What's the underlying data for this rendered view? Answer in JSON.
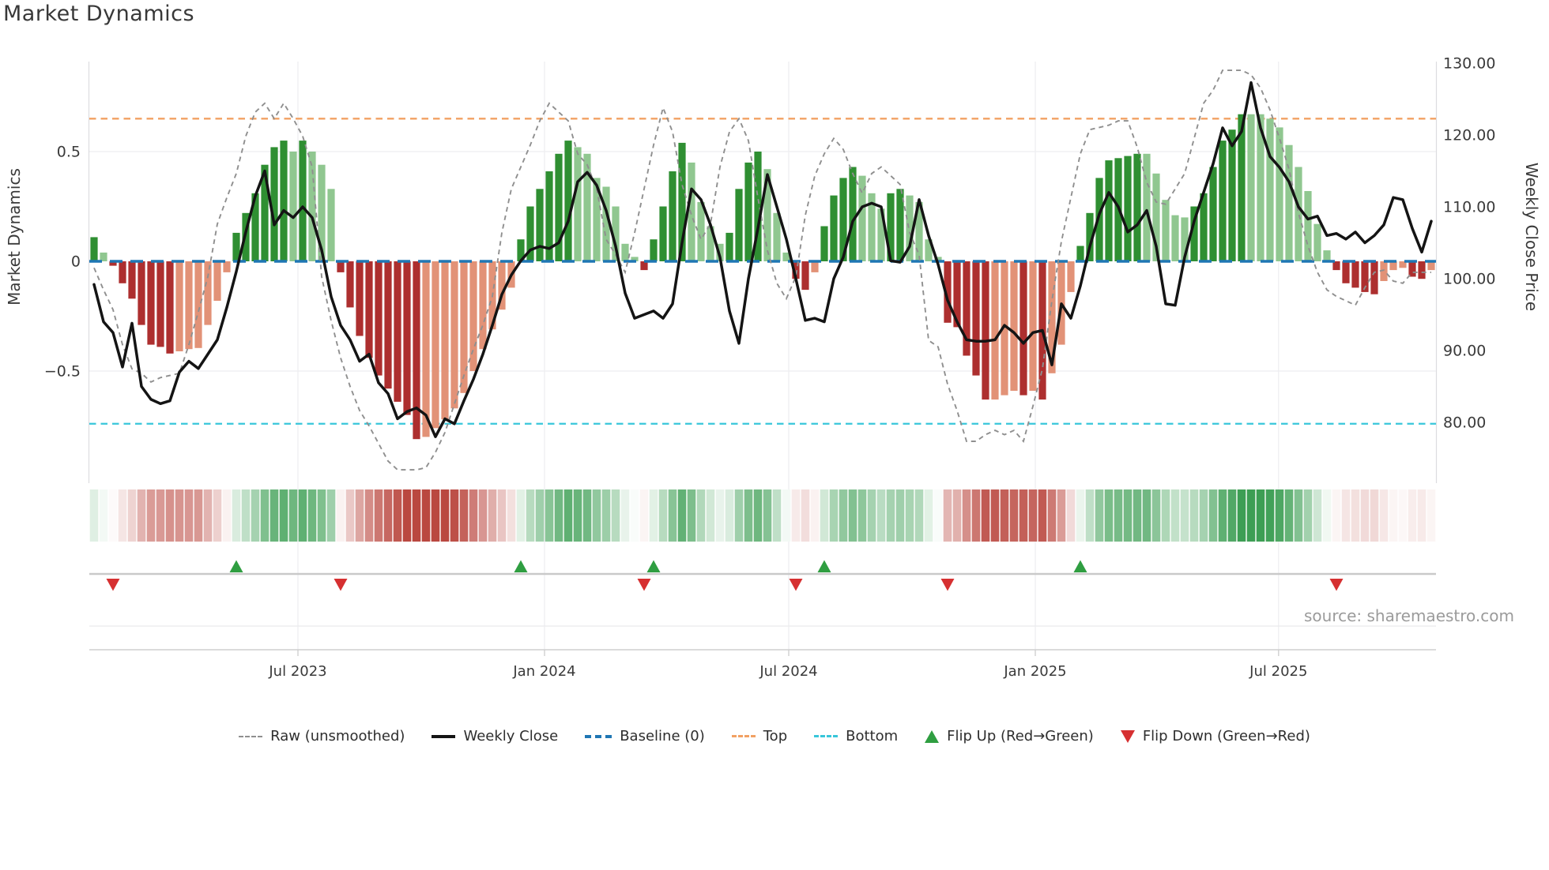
{
  "source_credit": "source: sharemaestro.com",
  "legend": {
    "items": [
      {
        "label": "Raw (unsmoothed)"
      },
      {
        "label": "Weekly Close"
      },
      {
        "label": "Baseline (0)"
      },
      {
        "label": "Top"
      },
      {
        "label": "Bottom"
      },
      {
        "label": "Flip Up (Red→Green)"
      },
      {
        "label": "Flip Down (Green→Red)"
      }
    ]
  },
  "chart_data": {
    "type": "combo",
    "title": "Market Dynamics",
    "x_axis": {
      "tick_labels": [
        "Jul 2023",
        "Jan 2024",
        "Jul 2024",
        "Jan 2025",
        "Jul 2025"
      ],
      "tick_week_positions": [
        22,
        48,
        73.75,
        99.75,
        125.4
      ],
      "n_weeks": 142
    },
    "left_axis": {
      "label": "Market Dynamics",
      "ticks": [
        {
          "value": 0.5,
          "label": "0.5"
        },
        {
          "value": 0,
          "label": "0"
        },
        {
          "value": -0.5,
          "label": "−0.5"
        }
      ],
      "range": [
        -1.0,
        0.9
      ]
    },
    "right_axis": {
      "label": "Weekly Close Price",
      "ticks": [
        {
          "value": 130,
          "label": "130.00"
        },
        {
          "value": 120,
          "label": "120.00"
        },
        {
          "value": 110,
          "label": "110.00"
        },
        {
          "value": 100,
          "label": "100.00"
        },
        {
          "value": 90,
          "label": "90.00"
        },
        {
          "value": 80,
          "label": "80.00"
        }
      ],
      "range": [
        72,
        130.5
      ]
    },
    "reference_lines": {
      "baseline": 0,
      "top": 0.65,
      "bottom": -0.74
    },
    "series": [
      {
        "name": "Market Dynamics (smoothed bars)",
        "type": "bar",
        "axis": "left",
        "values": [
          0.11,
          0.04,
          -0.02,
          -0.1,
          -0.17,
          -0.29,
          -0.38,
          -0.39,
          -0.42,
          -0.41,
          -0.4,
          -0.395,
          -0.29,
          -0.18,
          -0.05,
          0.13,
          0.22,
          0.31,
          0.44,
          0.52,
          0.55,
          0.5,
          0.55,
          0.5,
          0.44,
          0.33,
          -0.05,
          -0.21,
          -0.34,
          -0.44,
          -0.52,
          -0.58,
          -0.64,
          -0.7,
          -0.81,
          -0.8,
          -0.76,
          -0.72,
          -0.67,
          -0.6,
          -0.5,
          -0.4,
          -0.31,
          -0.22,
          -0.12,
          0.1,
          0.25,
          0.33,
          0.41,
          0.49,
          0.55,
          0.52,
          0.49,
          0.38,
          0.34,
          0.25,
          0.08,
          0.02,
          -0.04,
          0.1,
          0.25,
          0.41,
          0.54,
          0.45,
          0.27,
          0.16,
          0.08,
          0.13,
          0.33,
          0.45,
          0.5,
          0.42,
          0.22,
          0.04,
          -0.08,
          -0.13,
          -0.05,
          0.16,
          0.3,
          0.38,
          0.43,
          0.39,
          0.31,
          0.24,
          0.31,
          0.33,
          0.3,
          0.27,
          0.1,
          0.02,
          -0.28,
          -0.3,
          -0.43,
          -0.52,
          -0.63,
          -0.63,
          -0.61,
          -0.59,
          -0.61,
          -0.59,
          -0.63,
          -0.51,
          -0.38,
          -0.14,
          0.07,
          0.22,
          0.38,
          0.46,
          0.47,
          0.48,
          0.49,
          0.49,
          0.4,
          0.28,
          0.21,
          0.2,
          0.25,
          0.31,
          0.43,
          0.55,
          0.6,
          0.67,
          0.67,
          0.67,
          0.65,
          0.61,
          0.53,
          0.43,
          0.32,
          0.17,
          0.05,
          -0.04,
          -0.1,
          -0.12,
          -0.14,
          -0.15,
          -0.09,
          -0.04,
          -0.03,
          -0.07,
          -0.08,
          -0.04
        ]
      },
      {
        "name": "Raw (unsmoothed)",
        "type": "line",
        "dash": true,
        "axis": "left",
        "values": [
          -0.03,
          -0.13,
          -0.22,
          -0.38,
          -0.49,
          -0.51,
          -0.55,
          -0.53,
          -0.52,
          -0.51,
          -0.38,
          -0.23,
          -0.07,
          0.17,
          0.29,
          0.4,
          0.57,
          0.68,
          0.72,
          0.65,
          0.72,
          0.65,
          0.57,
          0.43,
          -0.07,
          -0.27,
          -0.44,
          -0.57,
          -0.68,
          -0.75,
          -0.83,
          -0.91,
          -0.95,
          -0.95,
          -0.95,
          -0.94,
          -0.87,
          -0.78,
          -0.65,
          -0.52,
          -0.4,
          -0.29,
          -0.16,
          0.13,
          0.33,
          0.43,
          0.53,
          0.64,
          0.72,
          0.68,
          0.64,
          0.49,
          0.44,
          0.33,
          0.1,
          0.03,
          -0.05,
          0.13,
          0.33,
          0.53,
          0.7,
          0.59,
          0.35,
          0.21,
          0.1,
          0.17,
          0.43,
          0.59,
          0.65,
          0.55,
          0.29,
          0.05,
          -0.1,
          -0.17,
          -0.07,
          0.21,
          0.39,
          0.49,
          0.56,
          0.51,
          0.4,
          0.31,
          0.4,
          0.43,
          0.39,
          0.35,
          0.13,
          0.03,
          -0.36,
          -0.39,
          -0.56,
          -0.68,
          -0.82,
          -0.82,
          -0.79,
          -0.77,
          -0.79,
          -0.77,
          -0.82,
          -0.66,
          -0.49,
          -0.18,
          0.09,
          0.29,
          0.49,
          0.6,
          0.61,
          0.62,
          0.64,
          0.64,
          0.52,
          0.36,
          0.27,
          0.26,
          0.33,
          0.4,
          0.56,
          0.72,
          0.78,
          0.87,
          0.87,
          0.87,
          0.85,
          0.79,
          0.69,
          0.56,
          0.42,
          0.22,
          0.07,
          -0.05,
          -0.13,
          -0.16,
          -0.18,
          -0.2,
          -0.12,
          -0.05,
          -0.04,
          -0.09,
          -0.1,
          -0.05,
          -0.05,
          -0.05
        ]
      },
      {
        "name": "Weekly Close",
        "type": "line",
        "axis": "right",
        "values": [
          99.2,
          94.0,
          92.5,
          87.7,
          93.8,
          85.0,
          83.2,
          82.6,
          83.0,
          87.0,
          88.5,
          87.5,
          89.5,
          91.5,
          96.0,
          101.0,
          106.5,
          111.5,
          115.0,
          107.5,
          109.5,
          108.5,
          110.0,
          108.5,
          104.0,
          97.5,
          93.5,
          91.5,
          88.5,
          89.5,
          85.5,
          84.0,
          80.5,
          81.5,
          82.0,
          81.0,
          78.0,
          80.5,
          79.8,
          83.0,
          86.0,
          89.5,
          93.5,
          97.8,
          100.5,
          102.5,
          104.0,
          104.5,
          104.2,
          105.0,
          108.0,
          113.5,
          114.8,
          113.0,
          109.5,
          104.5,
          98.0,
          94.5,
          95.0,
          95.5,
          94.5,
          96.5,
          105.0,
          112.5,
          111.0,
          107.5,
          103.0,
          95.5,
          91.0,
          100.0,
          107.0,
          114.5,
          110.0,
          105.5,
          100.0,
          94.2,
          94.5,
          94.0,
          100.0,
          103.0,
          108.0,
          110.0,
          110.5,
          110.0,
          102.5,
          102.3,
          104.5,
          111.0,
          106.0,
          102.0,
          97.0,
          94.0,
          91.5,
          91.3,
          91.3,
          91.5,
          93.5,
          92.5,
          91.0,
          92.5,
          92.8,
          88.0,
          96.5,
          94.5,
          99.0,
          104.5,
          109.0,
          112.0,
          110.0,
          106.5,
          107.5,
          109.5,
          104.5,
          96.5,
          96.3,
          103.0,
          108.0,
          112.0,
          116.0,
          121.0,
          118.5,
          120.5,
          127.3,
          121.0,
          117.0,
          115.5,
          113.5,
          110.0,
          108.3,
          108.7,
          106.0,
          106.3,
          105.5,
          106.5,
          105.0,
          106.0,
          107.5,
          111.3,
          111.0,
          107.0,
          103.7,
          108.0
        ]
      }
    ],
    "flip_markers": {
      "up_weeks": [
        15,
        45,
        59,
        77,
        104
      ],
      "down_weeks": [
        2,
        26,
        58,
        74,
        90,
        131
      ]
    },
    "heatmap": {
      "from": "series.0.values",
      "full_intensity_at": 0.7
    },
    "colors": {
      "bar_green_dark": "#2f8f32",
      "bar_green_light": "#90c790",
      "bar_red_dark": "#ad2f2f",
      "bar_red_light": "#e29277",
      "baseline": "#1f77b4",
      "top": "#f2a163",
      "bottom": "#38c6da",
      "raw_line": "#8f8f8f",
      "close_line": "#141414",
      "flip_up": "#2f9e41",
      "flip_down": "#d63031",
      "heat_positive": "#349a4c",
      "heat_negative": "#ba4840",
      "grid": "#ededf0",
      "spine": "#c9c9c9"
    }
  }
}
